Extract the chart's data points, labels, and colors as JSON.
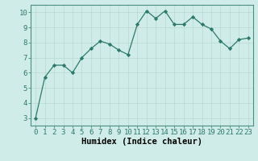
{
  "x": [
    0,
    1,
    2,
    3,
    4,
    5,
    6,
    7,
    8,
    9,
    10,
    11,
    12,
    13,
    14,
    15,
    16,
    17,
    18,
    19,
    20,
    21,
    22,
    23
  ],
  "y": [
    3.0,
    5.7,
    6.5,
    6.5,
    6.0,
    7.0,
    7.6,
    8.1,
    7.9,
    7.5,
    7.2,
    9.2,
    10.1,
    9.6,
    10.1,
    9.2,
    9.2,
    9.7,
    9.2,
    8.9,
    8.1,
    7.6,
    8.2,
    8.3
  ],
  "xlabel": "Humidex (Indice chaleur)",
  "xlim": [
    -0.5,
    23.5
  ],
  "ylim": [
    2.5,
    10.5
  ],
  "xticks": [
    0,
    1,
    2,
    3,
    4,
    5,
    6,
    7,
    8,
    9,
    10,
    11,
    12,
    13,
    14,
    15,
    16,
    17,
    18,
    19,
    20,
    21,
    22,
    23
  ],
  "yticks": [
    3,
    4,
    5,
    6,
    7,
    8,
    9,
    10
  ],
  "line_color": "#2d7a6a",
  "marker_color": "#2d7a6a",
  "bg_color": "#d0ece8",
  "grid_color": "#b8d8d0",
  "tick_label_fontsize": 6.5,
  "xlabel_fontsize": 7.5
}
